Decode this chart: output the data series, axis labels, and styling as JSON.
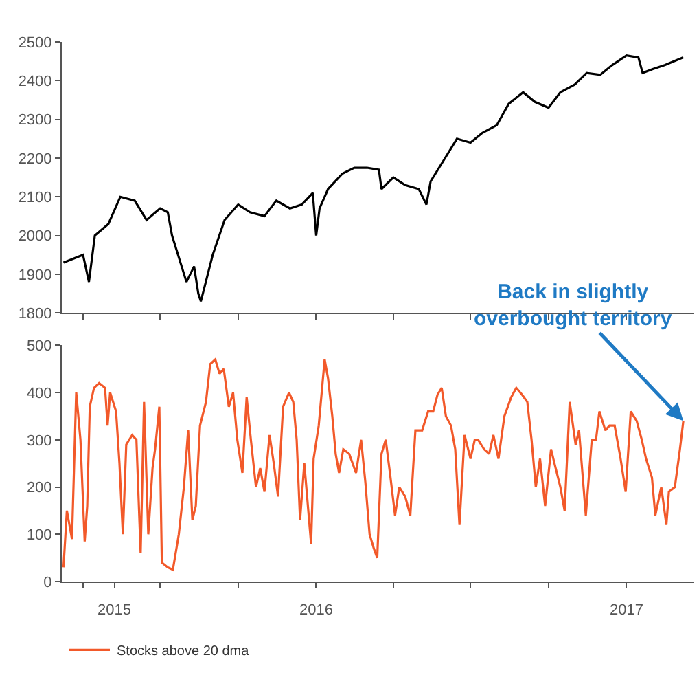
{
  "chart_data": [
    {
      "type": "line",
      "tick_labels": "y",
      "legend": false,
      "xlim": [
        "2015-03-07",
        "2017-03-21"
      ],
      "xticks": [
        {
          "value": "2015-04-01",
          "label": null
        },
        {
          "value": "2015-07-01",
          "label": null
        },
        {
          "value": "2015-10-01",
          "label": null
        },
        {
          "value": "2016-01-01",
          "label": null
        },
        {
          "value": "2016-04-01",
          "label": null
        },
        {
          "value": "2016-07-01",
          "label": null
        },
        {
          "value": "2016-10-01",
          "label": null
        },
        {
          "value": "2017-01-01",
          "label": null
        }
      ],
      "ylim": [
        1800,
        2500
      ],
      "yticks": [
        1800,
        1900,
        2000,
        2100,
        2200,
        2300,
        2400,
        2500
      ],
      "series": [
        {
          "color": "#000000",
          "x": [
            "2015-03-09",
            "2015-04-01",
            "2015-04-08",
            "2015-04-15",
            "2015-05-01",
            "2015-05-15",
            "2015-06-01",
            "2015-06-15",
            "2015-07-01",
            "2015-07-10",
            "2015-07-15",
            "2015-08-01",
            "2015-08-10",
            "2015-08-15",
            "2015-08-18",
            "2015-09-01",
            "2015-09-15",
            "2015-10-01",
            "2015-10-15",
            "2015-11-01",
            "2015-11-15",
            "2015-12-01",
            "2015-12-15",
            "2015-12-28",
            "2016-01-01",
            "2016-01-05",
            "2016-01-15",
            "2016-02-01",
            "2016-02-15",
            "2016-03-01",
            "2016-03-15",
            "2016-03-18",
            "2016-04-01",
            "2016-04-15",
            "2016-05-01",
            "2016-05-10",
            "2016-05-15",
            "2016-06-01",
            "2016-06-15",
            "2016-07-01",
            "2016-07-15",
            "2016-08-01",
            "2016-08-15",
            "2016-09-01",
            "2016-09-15",
            "2016-10-01",
            "2016-10-15",
            "2016-11-01",
            "2016-11-15",
            "2016-12-01",
            "2016-12-15",
            "2017-01-01",
            "2017-01-15",
            "2017-01-20",
            "2017-02-01",
            "2017-02-15",
            "2017-03-09"
          ],
          "values": [
            1930,
            1950,
            1880,
            2000,
            2030,
            2100,
            2090,
            2040,
            2070,
            2060,
            2000,
            1880,
            1920,
            1850,
            1830,
            1950,
            2040,
            2080,
            2060,
            2050,
            2090,
            2070,
            2080,
            2110,
            2000,
            2070,
            2120,
            2160,
            2175,
            2175,
            2170,
            2120,
            2150,
            2130,
            2120,
            2080,
            2140,
            2200,
            2250,
            2240,
            2265,
            2285,
            2340,
            2370,
            2345,
            2330,
            2370,
            2390,
            2420,
            2415,
            2440,
            2465,
            2460,
            2420,
            2430,
            2440,
            2460
          ]
        }
      ]
    },
    {
      "type": "line",
      "legend": "bottom left",
      "xlim": [
        "2015-03-07",
        "2017-03-21"
      ],
      "xticks": [
        {
          "value": "2015-04-01",
          "label": null
        },
        {
          "value": "2015-05-08",
          "label": "2015"
        },
        {
          "value": "2015-07-01",
          "label": null
        },
        {
          "value": "2015-10-01",
          "label": null
        },
        {
          "value": "2016-01-01",
          "label": "2016"
        },
        {
          "value": "2016-04-01",
          "label": null
        },
        {
          "value": "2016-07-01",
          "label": null
        },
        {
          "value": "2016-10-01",
          "label": null
        },
        {
          "value": "2017-01-01",
          "label": "2017"
        }
      ],
      "ylim": [
        0,
        500
      ],
      "yticks": [
        0,
        100,
        200,
        300,
        400,
        500
      ],
      "annotations": [
        {
          "text": "Back in slightly\noverbought territory",
          "x": "2017-03-09",
          "y": 340
        }
      ],
      "series": [
        {
          "name": "Stocks above 20 dma",
          "color": "#f2592a",
          "x": [
            "2015-03-09",
            "2015-03-13",
            "2015-03-19",
            "2015-03-24",
            "2015-03-29",
            "2015-04-03",
            "2015-04-06",
            "2015-04-09",
            "2015-04-14",
            "2015-04-20",
            "2015-04-27",
            "2015-04-30",
            "2015-05-03",
            "2015-05-10",
            "2015-05-14",
            "2015-05-18",
            "2015-05-22",
            "2015-05-29",
            "2015-06-03",
            "2015-06-08",
            "2015-06-12",
            "2015-06-17",
            "2015-06-22",
            "2015-06-25",
            "2015-06-30",
            "2015-07-03",
            "2015-07-10",
            "2015-07-16",
            "2015-07-23",
            "2015-07-29",
            "2015-08-03",
            "2015-08-08",
            "2015-08-12",
            "2015-08-17",
            "2015-08-24",
            "2015-08-29",
            "2015-09-04",
            "2015-09-09",
            "2015-09-14",
            "2015-09-20",
            "2015-09-25",
            "2015-09-30",
            "2015-10-06",
            "2015-10-11",
            "2015-10-16",
            "2015-10-22",
            "2015-10-27",
            "2015-11-01",
            "2015-11-07",
            "2015-11-12",
            "2015-11-17",
            "2015-11-23",
            "2015-11-30",
            "2015-12-05",
            "2015-12-09",
            "2015-12-13",
            "2015-12-18",
            "2015-12-26",
            "2015-12-29",
            "2016-01-04",
            "2016-01-11",
            "2016-01-15",
            "2016-01-20",
            "2016-01-24",
            "2016-01-28",
            "2016-02-02",
            "2016-02-09",
            "2016-02-17",
            "2016-02-23",
            "2016-02-28",
            "2016-03-04",
            "2016-03-09",
            "2016-03-13",
            "2016-03-18",
            "2016-03-23",
            "2016-03-28",
            "2016-04-03",
            "2016-04-08",
            "2016-04-15",
            "2016-04-21",
            "2016-04-27",
            "2016-05-05",
            "2016-05-12",
            "2016-05-18",
            "2016-05-23",
            "2016-05-28",
            "2016-06-02",
            "2016-06-08",
            "2016-06-13",
            "2016-06-18",
            "2016-06-24",
            "2016-07-01",
            "2016-07-06",
            "2016-07-10",
            "2016-07-17",
            "2016-07-23",
            "2016-07-28",
            "2016-08-03",
            "2016-08-10",
            "2016-08-18",
            "2016-08-24",
            "2016-08-31",
            "2016-09-06",
            "2016-09-11",
            "2016-09-16",
            "2016-09-21",
            "2016-09-27",
            "2016-10-04",
            "2016-10-08",
            "2016-10-15",
            "2016-10-20",
            "2016-10-26",
            "2016-11-02",
            "2016-11-06",
            "2016-11-14",
            "2016-11-21",
            "2016-11-26",
            "2016-11-30",
            "2016-12-07",
            "2016-12-12",
            "2016-12-18",
            "2016-12-25",
            "2016-12-31",
            "2017-01-06",
            "2017-01-13",
            "2017-01-19",
            "2017-01-24",
            "2017-01-31",
            "2017-02-04",
            "2017-02-11",
            "2017-02-17",
            "2017-02-20",
            "2017-02-27",
            "2017-03-05",
            "2017-03-09"
          ],
          "values": [
            30,
            150,
            90,
            400,
            300,
            85,
            160,
            370,
            410,
            420,
            410,
            330,
            400,
            360,
            250,
            100,
            290,
            310,
            300,
            60,
            380,
            100,
            240,
            280,
            370,
            40,
            30,
            25,
            100,
            200,
            320,
            130,
            160,
            330,
            380,
            460,
            470,
            440,
            450,
            370,
            400,
            300,
            230,
            390,
            300,
            200,
            240,
            190,
            310,
            250,
            180,
            370,
            400,
            380,
            300,
            130,
            250,
            80,
            260,
            330,
            470,
            430,
            350,
            270,
            230,
            280,
            270,
            230,
            300,
            210,
            100,
            70,
            50,
            270,
            300,
            230,
            140,
            200,
            180,
            140,
            320,
            320,
            360,
            360,
            395,
            410,
            350,
            330,
            280,
            120,
            310,
            260,
            300,
            300,
            280,
            270,
            310,
            260,
            350,
            390,
            410,
            395,
            380,
            300,
            200,
            260,
            160,
            280,
            250,
            200,
            150,
            380,
            290,
            320,
            140,
            300,
            300,
            360,
            320,
            330,
            330,
            260,
            190,
            360,
            340,
            300,
            260,
            220,
            140,
            200,
            120,
            190,
            200,
            280,
            340
          ]
        }
      ]
    }
  ]
}
